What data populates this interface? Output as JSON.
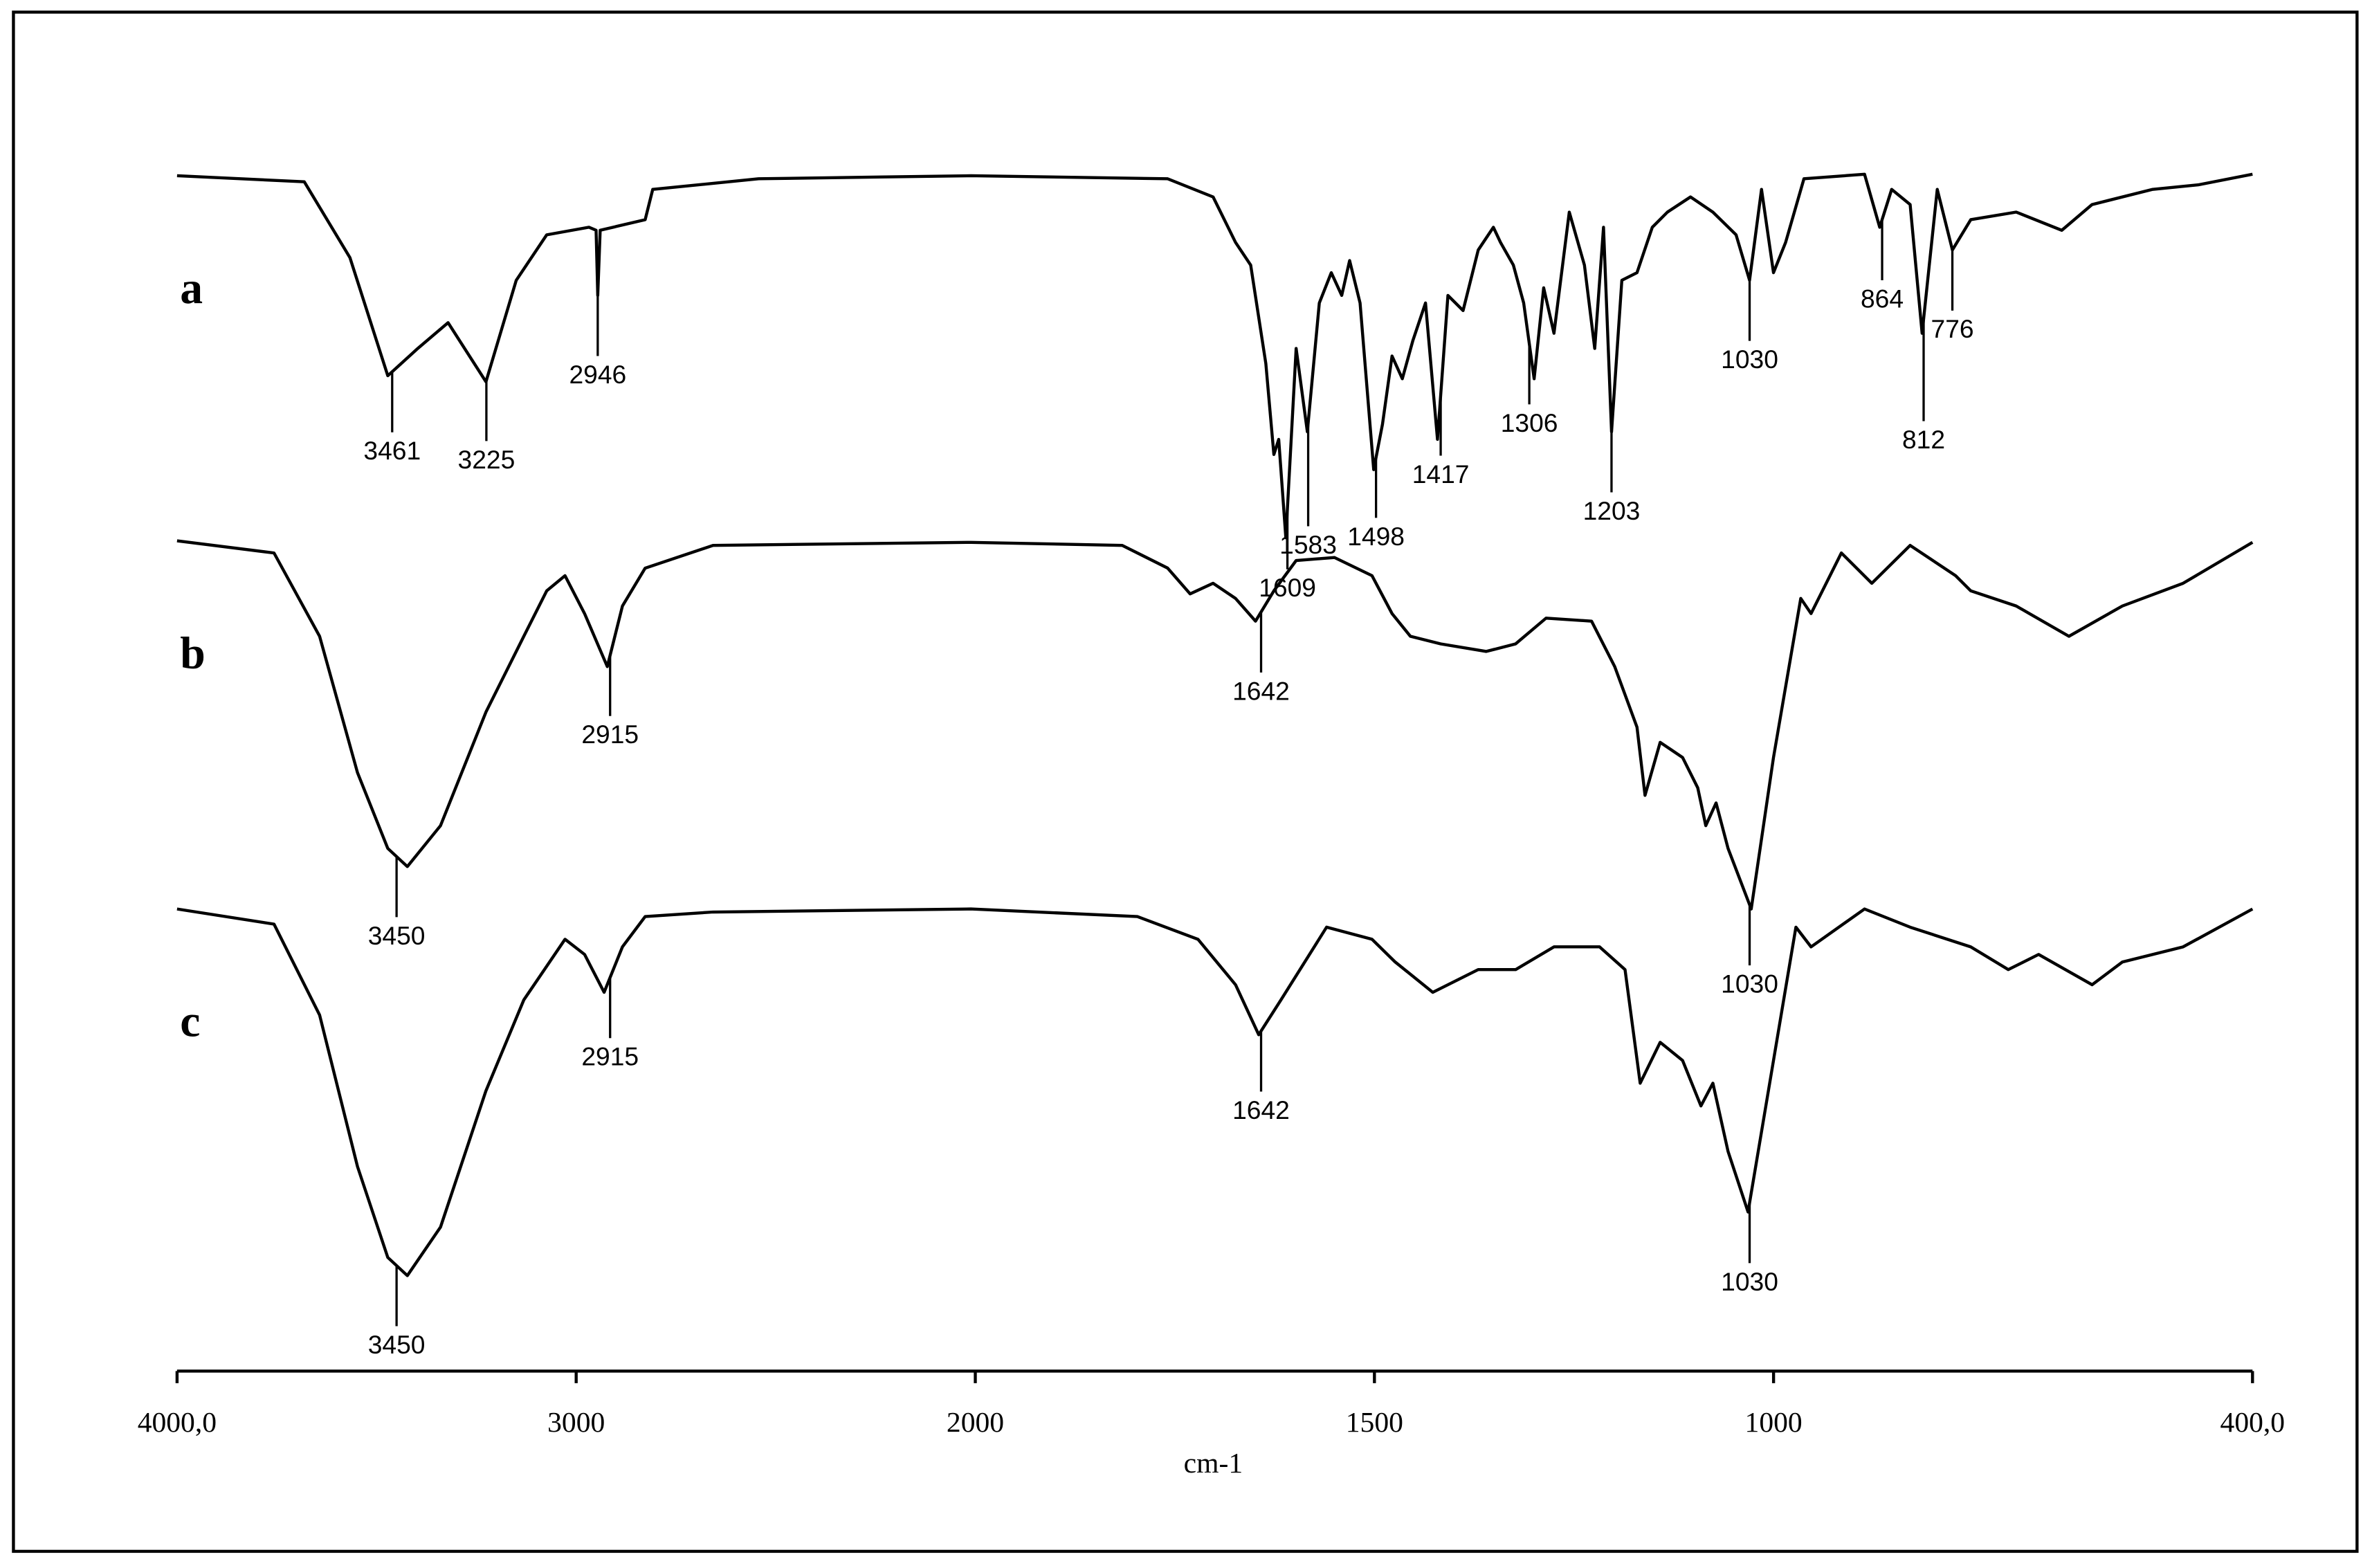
{
  "chart_data": {
    "type": "line",
    "x_label": "cm-1",
    "xlim": [
      4000,
      400
    ],
    "x_scale_break": 2000,
    "xticks": [
      {
        "value": 4000,
        "label": "4000,0"
      },
      3000,
      2000,
      1500,
      1000,
      {
        "value": 400,
        "label": "400,0"
      }
    ],
    "ylim": [
      0,
      88.5
    ],
    "series": [
      {
        "name": "a",
        "color": "#000000",
        "x": [
          4000,
          3681,
          3567,
          3472,
          3397,
          3321,
          3226,
          3150,
          3074,
          2968,
          2950,
          2946,
          2940,
          2827,
          2808,
          2543,
          2011,
          1759,
          1702,
          1674,
          1655,
          1636,
          1626,
          1620,
          1611,
          1598,
          1584,
          1569,
          1554,
          1541,
          1531,
          1518,
          1501,
          1490,
          1478,
          1465,
          1452,
          1436,
          1421,
          1408,
          1389,
          1370,
          1351,
          1342,
          1326,
          1313,
          1300,
          1288,
          1275,
          1256,
          1237,
          1224,
          1213,
          1203,
          1190,
          1171,
          1152,
          1133,
          1104,
          1076,
          1047,
          1030,
          1015,
          1000,
          985,
          962,
          886,
          867,
          852,
          829,
          814,
          795,
          776,
          753,
          696,
          639,
          601,
          525,
          468,
          400
        ],
        "values": [
          78.9,
          78.5,
          73.5,
          65.7,
          67.5,
          69.2,
          65.3,
          72.0,
          75.0,
          75.5,
          75.3,
          71.0,
          75.3,
          76.0,
          78.0,
          78.7,
          78.9,
          78.7,
          77.5,
          74.5,
          73.0,
          66.5,
          60.5,
          61.5,
          55.0,
          67.5,
          62.0,
          70.5,
          72.5,
          71.0,
          73.3,
          70.5,
          59.5,
          62.5,
          67.0,
          65.5,
          68.0,
          70.5,
          61.5,
          71.0,
          70.0,
          74.0,
          75.5,
          74.5,
          73.0,
          70.5,
          65.5,
          71.5,
          68.5,
          76.5,
          73.0,
          67.5,
          75.5,
          62.0,
          72.0,
          72.5,
          75.5,
          76.5,
          77.5,
          76.5,
          75.0,
          72.0,
          78.0,
          72.5,
          74.5,
          78.7,
          79.0,
          75.5,
          78.0,
          77.0,
          68.5,
          78.0,
          74.0,
          76.0,
          76.5,
          75.3,
          77.0,
          78.0,
          78.3,
          79.0
        ],
        "peaks": [
          3461,
          3225,
          2946,
          1609,
          1583,
          1498,
          1417,
          1306,
          1203,
          1030,
          864,
          812,
          776
        ]
      },
      {
        "name": "b",
        "color": "#000000",
        "x": [
          4000,
          3757,
          3643,
          3548,
          3472,
          3423,
          3340,
          3226,
          3131,
          3074,
          3028,
          2979,
          2922,
          2884,
          2827,
          2657,
          2011,
          1816,
          1759,
          1731,
          1702,
          1674,
          1649,
          1626,
          1598,
          1550,
          1503,
          1478,
          1455,
          1417,
          1360,
          1323,
          1285,
          1228,
          1199,
          1171,
          1161,
          1142,
          1114,
          1095,
          1085,
          1072,
          1057,
          1028,
          1000,
          966,
          953,
          915,
          877,
          829,
          772,
          753,
          696,
          630,
          563,
          487,
          400
        ],
        "values": [
          54.8,
          54.0,
          48.5,
          39.5,
          34.5,
          33.3,
          36.0,
          43.5,
          48.5,
          51.5,
          52.5,
          50.0,
          46.5,
          50.5,
          53.0,
          54.5,
          54.7,
          54.5,
          53.0,
          51.3,
          52.0,
          51.0,
          49.5,
          51.5,
          53.5,
          53.7,
          52.5,
          50.0,
          48.5,
          48.0,
          47.5,
          48.0,
          49.7,
          49.5,
          46.5,
          42.5,
          38.0,
          41.5,
          40.5,
          38.5,
          36.0,
          37.5,
          34.5,
          30.5,
          40.5,
          51.0,
          50.0,
          54.0,
          52.0,
          54.5,
          52.5,
          51.5,
          50.5,
          48.5,
          50.5,
          52.0,
          54.7
        ],
        "peaks": [
          3450,
          2915,
          1642,
          1030
        ]
      },
      {
        "name": "c",
        "color": "#000000",
        "x": [
          4000,
          3757,
          3643,
          3548,
          3472,
          3423,
          3340,
          3226,
          3131,
          3028,
          2979,
          2930,
          2884,
          2827,
          2657,
          2011,
          1797,
          1721,
          1674,
          1645,
          1617,
          1560,
          1503,
          1474,
          1427,
          1370,
          1323,
          1275,
          1218,
          1186,
          1167,
          1142,
          1114,
          1091,
          1076,
          1057,
          1032,
          1000,
          972,
          953,
          886,
          829,
          753,
          706,
          668,
          601,
          563,
          487,
          400
        ],
        "values": [
          30.5,
          29.5,
          23.5,
          13.5,
          7.5,
          6.3,
          9.5,
          18.5,
          24.5,
          28.5,
          27.5,
          25.0,
          28.0,
          30.0,
          30.3,
          30.5,
          30.0,
          28.5,
          25.5,
          22.2,
          24.5,
          29.3,
          28.5,
          27.0,
          25.0,
          26.5,
          26.5,
          28.0,
          28.0,
          26.5,
          19.0,
          21.7,
          20.5,
          17.5,
          19.0,
          14.5,
          10.5,
          20.5,
          29.3,
          28.0,
          30.5,
          29.3,
          28.0,
          26.5,
          27.5,
          25.5,
          27.0,
          28.0,
          30.5
        ],
        "peaks": [
          3450,
          2915,
          1642,
          1030
        ]
      }
    ]
  }
}
